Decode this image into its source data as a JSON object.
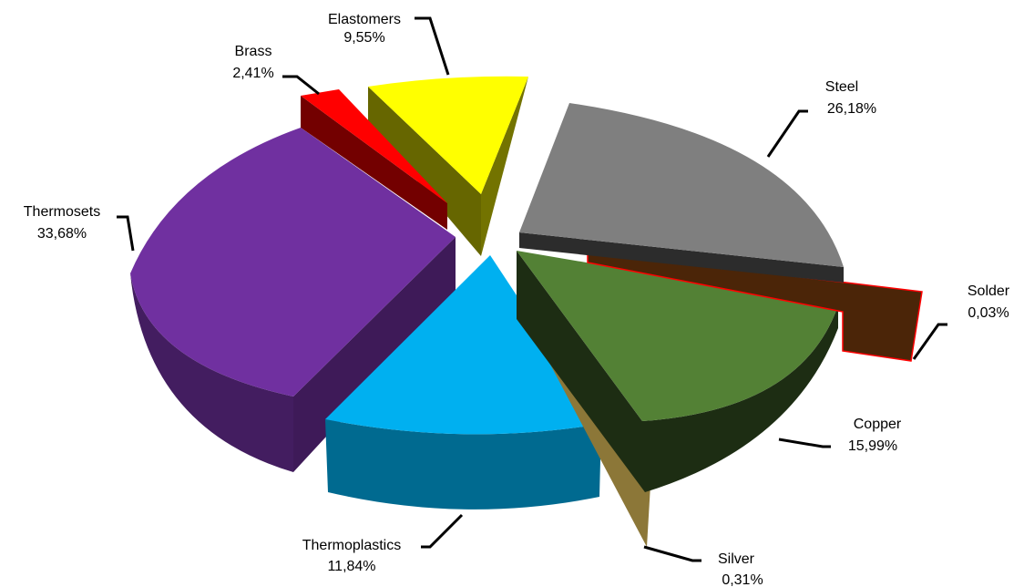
{
  "chart_data": {
    "type": "pie",
    "title": "",
    "style": "3d-exploded",
    "slices": [
      {
        "label": "Steel",
        "value": 26.18,
        "percent_text": "26,18%",
        "color": "#7f7f7f"
      },
      {
        "label": "Solder",
        "value": 0.03,
        "percent_text": "0,03%",
        "color": "#4b2508"
      },
      {
        "label": "Copper",
        "value": 15.99,
        "percent_text": "15,99%",
        "color": "#538135"
      },
      {
        "label": "Silver",
        "value": 0.31,
        "percent_text": "0,31%",
        "color": "#ffd966"
      },
      {
        "label": "Thermoplastics",
        "value": 11.84,
        "percent_text": "11,84%",
        "color": "#00b0f0"
      },
      {
        "label": "Thermosets",
        "value": 33.68,
        "percent_text": "33,68%",
        "color": "#7030a0"
      },
      {
        "label": "Brass",
        "value": 2.41,
        "percent_text": "2,41%",
        "color": "#ff0000"
      },
      {
        "label": "Elastomers",
        "value": 9.55,
        "percent_text": "9,55%",
        "color": "#ffff00"
      }
    ]
  }
}
